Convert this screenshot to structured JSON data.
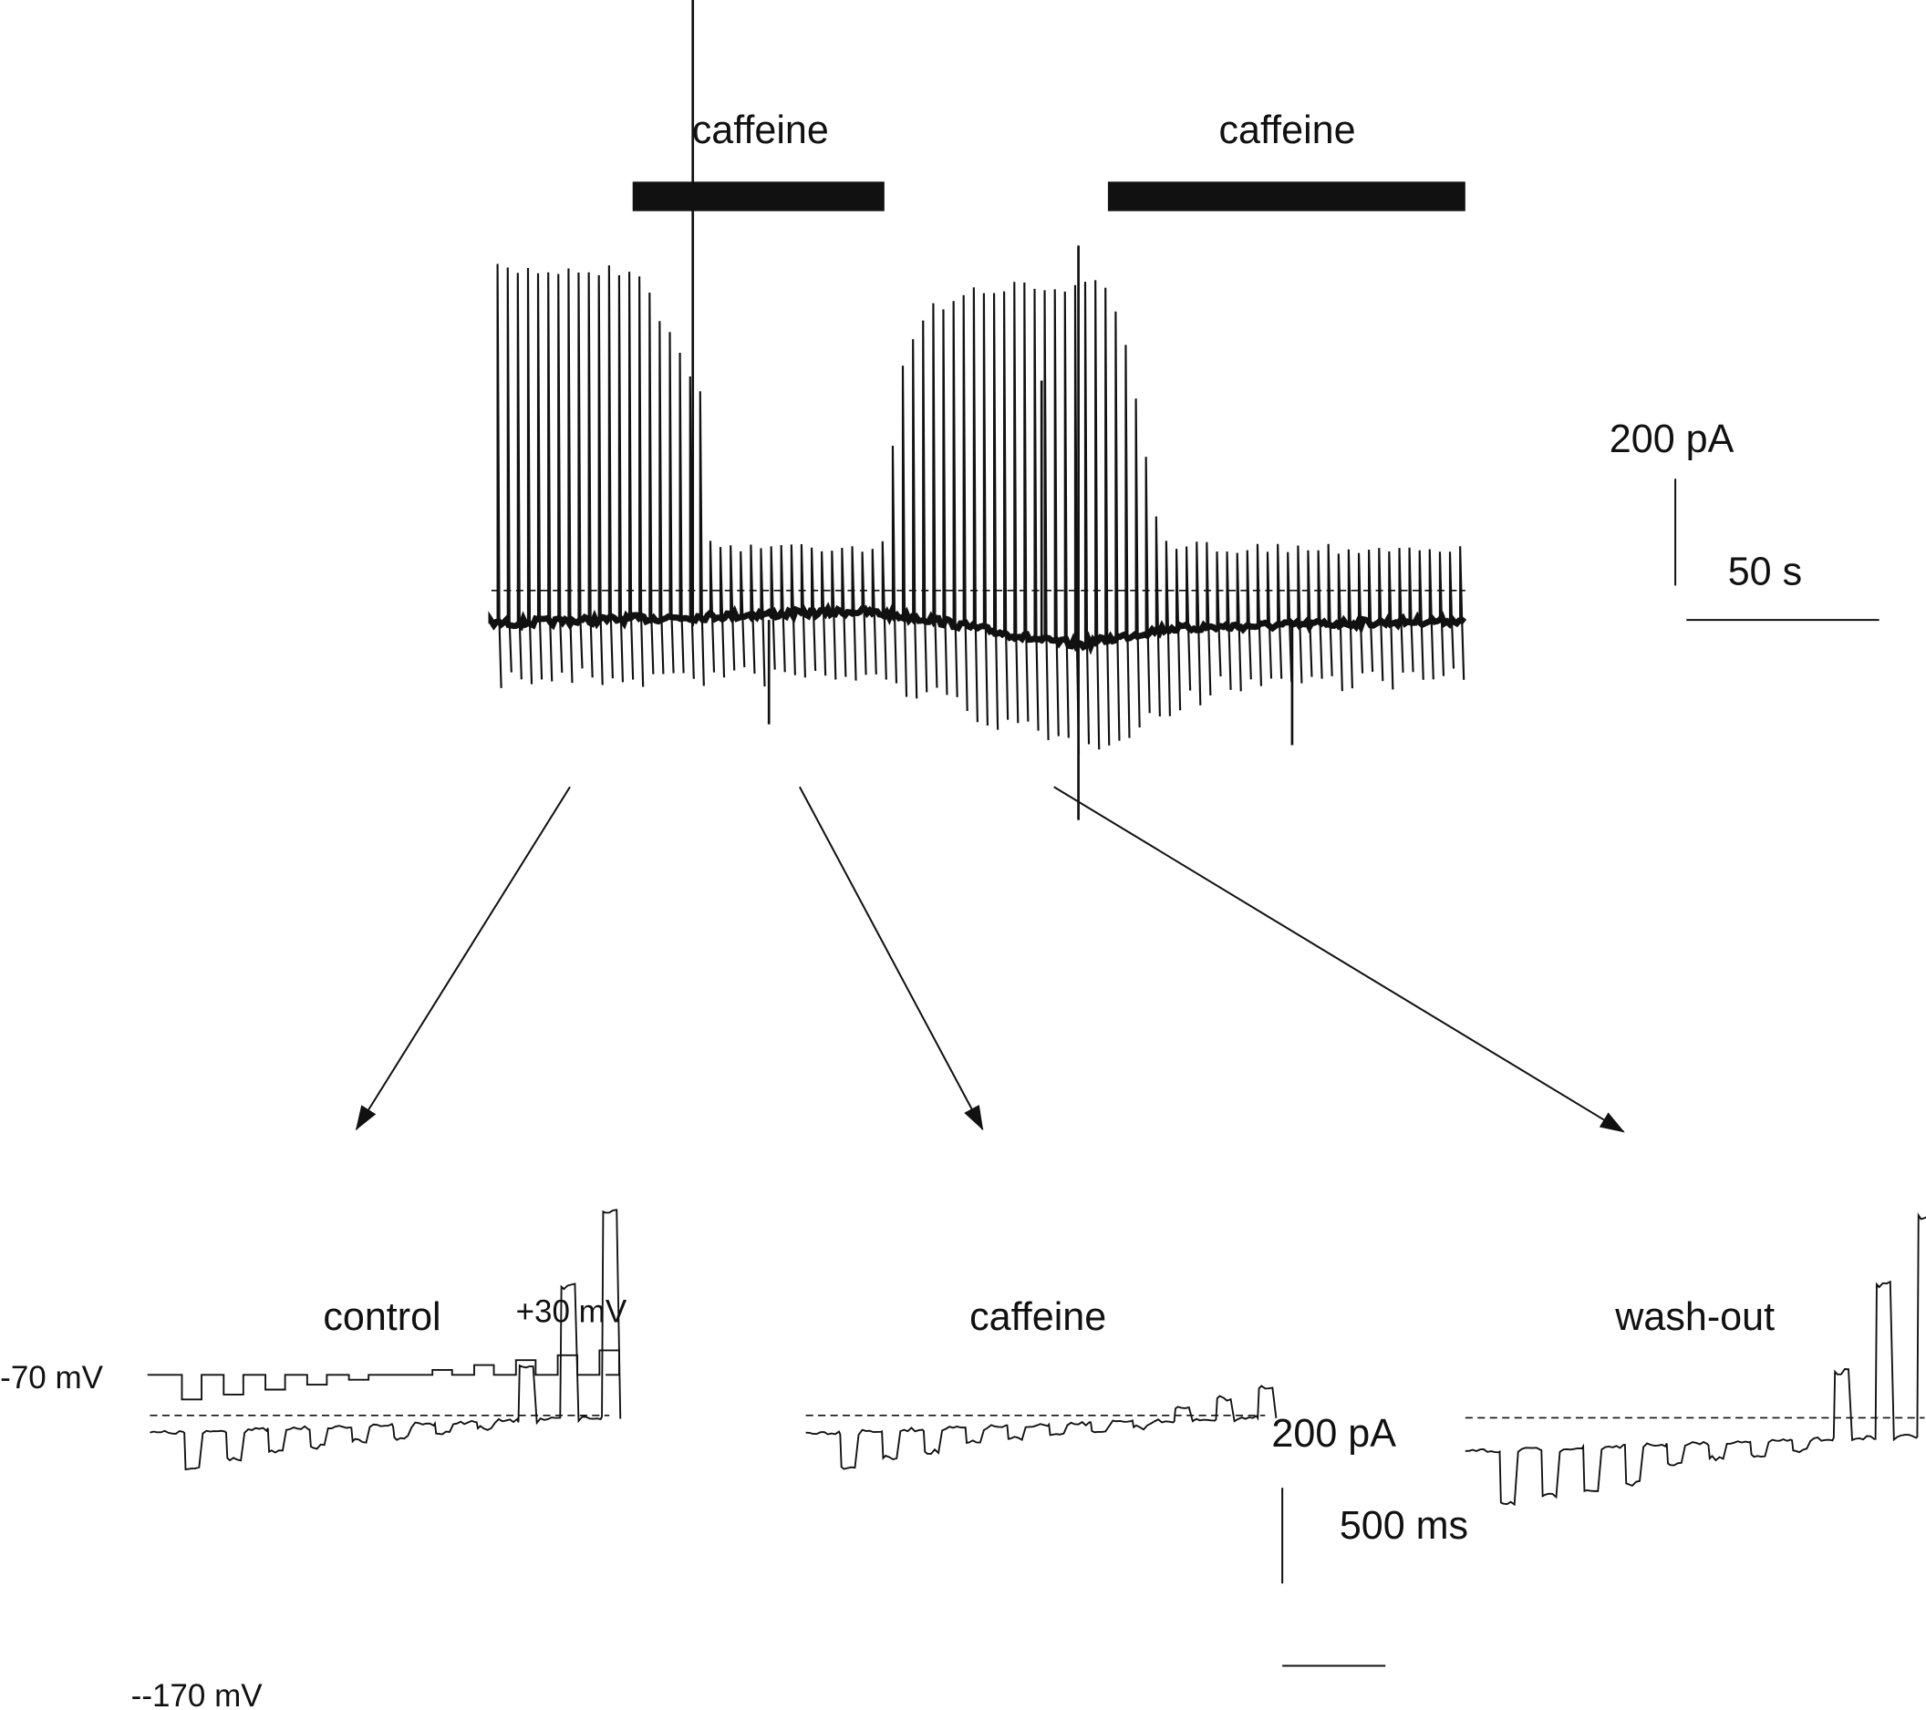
{
  "top_trace": {
    "labels": [
      "caffeine",
      "caffeine"
    ],
    "scale_bar": {
      "current": "200 pA",
      "time": "50 s"
    }
  },
  "panels": [
    {
      "label": "control"
    },
    {
      "label": "caffeine"
    },
    {
      "label": "wash-out"
    }
  ],
  "protocol": {
    "top": "+30 mV",
    "holding": "-70 mV",
    "bottom": "--170 mV"
  },
  "bottom_scale_bar": {
    "current": "200 pA",
    "time": "500 ms"
  }
}
